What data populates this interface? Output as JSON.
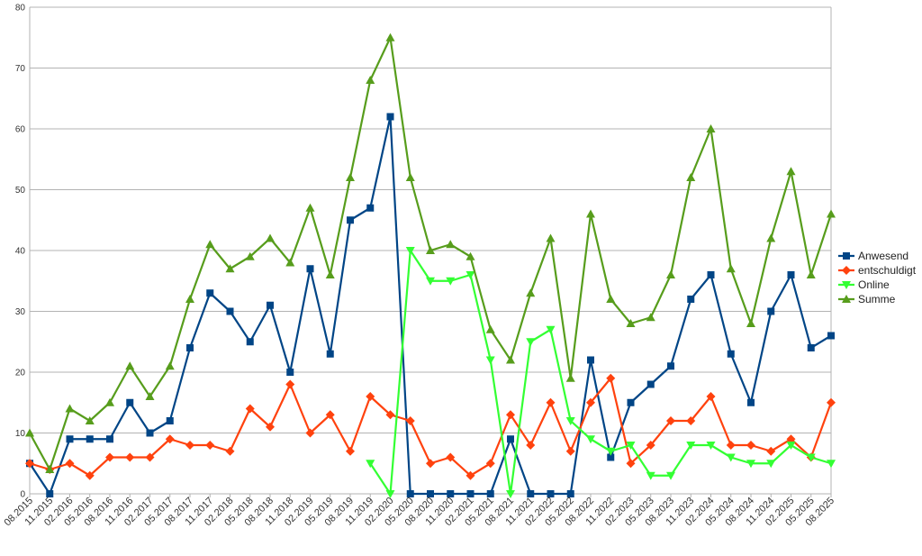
{
  "chart_data": {
    "type": "line",
    "title": "",
    "xlabel": "",
    "ylabel": "",
    "ylim": [
      0,
      80
    ],
    "yticks": [
      0,
      10,
      20,
      30,
      40,
      50,
      60,
      70,
      80
    ],
    "grid": "horizontal",
    "legend_position": "right",
    "categories": [
      "08.2015",
      "11.2015",
      "02.2016",
      "05.2016",
      "08.2016",
      "11.2016",
      "02.2017",
      "05.2017",
      "08.2017",
      "11.2017",
      "02.2018",
      "05.2018",
      "08.2018",
      "11.2018",
      "02.2019",
      "05.2019",
      "08.2019",
      "11.2019",
      "02.2020",
      "05.2020",
      "08.2020",
      "11.2020",
      "02.2021",
      "05.2021",
      "08.2021",
      "11.2021",
      "02.2022",
      "05.2022",
      "08.2022",
      "11.2022",
      "02.2023",
      "05.2023",
      "08.2023",
      "11.2023",
      "02.2024",
      "05.2024",
      "08.2024",
      "11.2024",
      "02.2025",
      "05.2025",
      "08.2025"
    ],
    "series": [
      {
        "name": "Anwesend",
        "color": "#004586",
        "marker": "square",
        "values": [
          5,
          0,
          9,
          9,
          9,
          15,
          10,
          12,
          24,
          33,
          30,
          25,
          31,
          20,
          37,
          23,
          45,
          47,
          62,
          0,
          0,
          0,
          0,
          0,
          9,
          0,
          0,
          0,
          22,
          6,
          15,
          18,
          21,
          32,
          36,
          23,
          15,
          30,
          36,
          24,
          26
        ]
      },
      {
        "name": "entschuldigt",
        "color": "#ff420e",
        "marker": "diamond",
        "values": [
          5,
          4,
          5,
          3,
          6,
          6,
          6,
          9,
          8,
          8,
          7,
          14,
          11,
          18,
          10,
          13,
          7,
          16,
          13,
          12,
          5,
          6,
          3,
          5,
          13,
          8,
          15,
          7,
          15,
          19,
          5,
          8,
          12,
          12,
          16,
          8,
          8,
          7,
          9,
          6,
          15
        ]
      },
      {
        "name": "Online",
        "color": "#33ff33",
        "marker": "triangle-down",
        "values": [
          null,
          null,
          null,
          null,
          null,
          null,
          null,
          null,
          null,
          null,
          null,
          null,
          null,
          null,
          null,
          null,
          null,
          5,
          0,
          40,
          35,
          35,
          36,
          22,
          0,
          25,
          27,
          12,
          9,
          7,
          8,
          3,
          3,
          8,
          8,
          6,
          5,
          5,
          8,
          6,
          5
        ]
      },
      {
        "name": "Summe",
        "color": "#579d1c",
        "marker": "triangle-up",
        "values": [
          10,
          4,
          14,
          12,
          15,
          21,
          16,
          21,
          32,
          41,
          37,
          39,
          42,
          38,
          47,
          36,
          52,
          68,
          75,
          52,
          40,
          41,
          39,
          27,
          22,
          33,
          42,
          19,
          46,
          32,
          28,
          29,
          36,
          52,
          60,
          37,
          28,
          42,
          53,
          36,
          46
        ]
      }
    ]
  }
}
